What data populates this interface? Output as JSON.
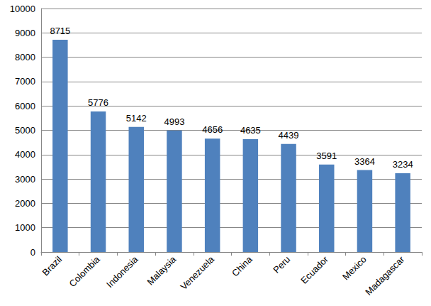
{
  "chart_data": {
    "type": "bar",
    "categories": [
      "Brazil",
      "Colombia",
      "Indonesia",
      "Malaysia",
      "Venezuela",
      "China",
      "Peru",
      "Ecuador",
      "Mexico",
      "Madagascar"
    ],
    "values": [
      8715,
      5776,
      5142,
      4993,
      4656,
      4635,
      4439,
      3591,
      3364,
      3234
    ],
    "color": "#4f81bd",
    "ylim": [
      0,
      10000
    ],
    "yticks": [
      0,
      1000,
      2000,
      3000,
      4000,
      5000,
      6000,
      7000,
      8000,
      9000,
      10000
    ],
    "grid": true,
    "data_labels": true
  }
}
